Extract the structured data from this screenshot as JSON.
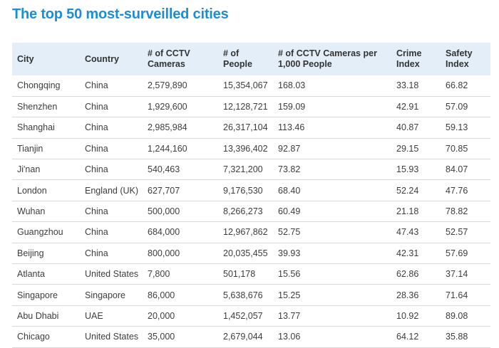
{
  "title": "The top 50 most-surveilled cities",
  "table": {
    "headers": [
      "City",
      "Country",
      "# of CCTV Cameras",
      "# of People",
      "# of CCTV Cameras per 1,000 People",
      "Crime Index",
      "Safety Index"
    ],
    "rows": [
      [
        "Chongqing",
        "China",
        "2,579,890",
        "15,354,067",
        "168.03",
        "33.18",
        "66.82"
      ],
      [
        "Shenzhen",
        "China",
        "1,929,600",
        "12,128,721",
        "159.09",
        "42.91",
        "57.09"
      ],
      [
        "Shanghai",
        "China",
        "2,985,984",
        "26,317,104",
        "113.46",
        "40.87",
        "59.13"
      ],
      [
        "Tianjin",
        "China",
        "1,244,160",
        "13,396,402",
        "92.87",
        "29.15",
        "70.85"
      ],
      [
        "Ji'nan",
        "China",
        "540,463",
        "7,321,200",
        "73.82",
        "15.93",
        "84.07"
      ],
      [
        "London",
        "England (UK)",
        "627,707",
        "9,176,530",
        "68.40",
        "52.24",
        "47.76"
      ],
      [
        "Wuhan",
        "China",
        "500,000",
        "8,266,273",
        "60.49",
        "21.18",
        "78.82"
      ],
      [
        "Guangzhou",
        "China",
        "684,000",
        "12,967,862",
        "52.75",
        "47.43",
        "52.57"
      ],
      [
        "Beijing",
        "China",
        "800,000",
        "20,035,455",
        "39.93",
        "42.31",
        "57.69"
      ],
      [
        "Atlanta",
        "United States",
        "7,800",
        "501,178",
        "15.56",
        "62.86",
        "37.14"
      ],
      [
        "Singapore",
        "Singapore",
        "86,000",
        "5,638,676",
        "15.25",
        "28.36",
        "71.64"
      ],
      [
        "Abu Dhabi",
        "UAE",
        "20,000",
        "1,452,057",
        "13.77",
        "10.92",
        "89.08"
      ],
      [
        "Chicago",
        "United States",
        "35,000",
        "2,679,044",
        "13.06",
        "64.12",
        "35.88"
      ]
    ]
  }
}
